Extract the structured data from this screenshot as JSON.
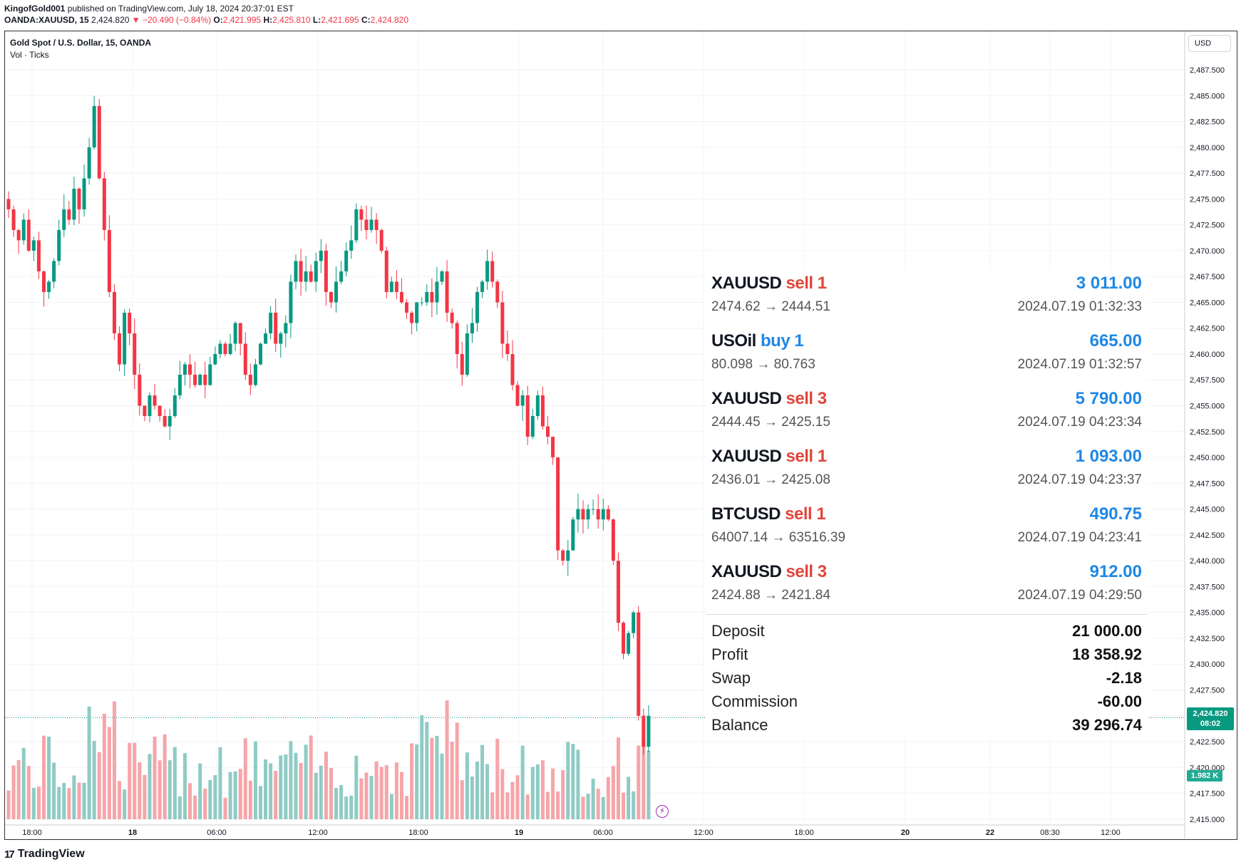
{
  "header": {
    "author": "KingofGold001",
    "published_text": "published on TradingView.com, July 18, 2024 20:37:01 EST",
    "symbol": "OANDA:XAUUSD, 15",
    "last": "2,424.820",
    "change": "−20.490 (−0.84%)",
    "o_label": "O:",
    "o_val": "2,421.995",
    "h_label": "H:",
    "h_val": "2,425.810",
    "l_label": "L:",
    "l_val": "2,421.695",
    "c_label": "C:",
    "c_val": "2,424.820"
  },
  "legend": {
    "title": "Gold Spot / U.S. Dollar, 15, OANDA",
    "volume": "Vol · Ticks"
  },
  "currency": "USD",
  "price_axis": [
    "2,487.500",
    "2,485.000",
    "2,482.500",
    "2,480.000",
    "2,477.500",
    "2,475.000",
    "2,472.500",
    "2,470.000",
    "2,467.500",
    "2,465.000",
    "2,462.500",
    "2,460.000",
    "2,457.500",
    "2,455.000",
    "2,452.500",
    "2,450.000",
    "2,447.500",
    "2,445.000",
    "2,442.500",
    "2,440.000",
    "2,437.500",
    "2,435.000",
    "2,432.500",
    "2,430.000",
    "2,427.500",
    "2,425.000",
    "2,422.500",
    "2,420.000",
    "2,417.500",
    "2,415.000"
  ],
  "time_axis": [
    "18:00",
    "18",
    "06:00",
    "12:00",
    "18:00",
    "19",
    "06:00",
    "12:00",
    "18:00",
    "20",
    "22",
    "08:30",
    "12:00"
  ],
  "price_tag": {
    "price": "2,424.820",
    "countdown": "08:02"
  },
  "volume_tag": "1.982 K",
  "trades": [
    {
      "symbol": "XAUUSD",
      "side": "sell 1",
      "type": "sell",
      "profit": "3 011.00",
      "prices": "2474.62 → 2444.51",
      "time": "2024.07.19 01:32:33"
    },
    {
      "symbol": "USOil",
      "side": "buy 1",
      "type": "buy",
      "profit": "665.00",
      "prices": "80.098 → 80.763",
      "time": "2024.07.19 01:32:57"
    },
    {
      "symbol": "XAUUSD",
      "side": "sell 3",
      "type": "sell",
      "profit": "5 790.00",
      "prices": "2444.45 → 2425.15",
      "time": "2024.07.19 04:23:34"
    },
    {
      "symbol": "XAUUSD",
      "side": "sell 1",
      "type": "sell",
      "profit": "1 093.00",
      "prices": "2436.01 → 2425.08",
      "time": "2024.07.19 04:23:37"
    },
    {
      "symbol": "BTCUSD",
      "side": "sell 1",
      "type": "sell",
      "profit": "490.75",
      "prices": "64007.14 → 63516.39",
      "time": "2024.07.19 04:23:41"
    },
    {
      "symbol": "XAUUSD",
      "side": "sell 3",
      "type": "sell",
      "profit": "912.00",
      "prices": "2424.88 → 2421.84",
      "time": "2024.07.19 04:29:50"
    }
  ],
  "summary": [
    {
      "label": "Deposit",
      "value": "21 000.00"
    },
    {
      "label": "Profit",
      "value": "18 358.92"
    },
    {
      "label": "Swap",
      "value": "-2.18"
    },
    {
      "label": "Commission",
      "value": "-60.00"
    },
    {
      "label": "Balance",
      "value": "39 296.74"
    }
  ],
  "footer": {
    "brand": "TradingView",
    "mark": "17"
  },
  "colors": {
    "up": "#089981",
    "down": "#f23645",
    "vol_up": "#8fcbc4",
    "vol_down": "#f6a5a9",
    "buy": "#1e88e5",
    "sell": "#e2463b"
  },
  "chart_data": {
    "type": "candlestick",
    "ylim": [
      2414,
      2490
    ],
    "closes": [
      2474,
      2472,
      2471,
      2473,
      2470,
      2471,
      2468,
      2466,
      2467,
      2469,
      2472,
      2474,
      2473,
      2476,
      2474,
      2477,
      2480,
      2484,
      2477,
      2472,
      2466,
      2462,
      2459,
      2464,
      2462,
      2458,
      2455,
      2454,
      2456,
      2455,
      2454,
      2453,
      2454,
      2456,
      2458,
      2459,
      2458,
      2457,
      2458,
      2457,
      2459,
      2460,
      2461,
      2460,
      2461,
      2463,
      2461,
      2458,
      2457,
      2459,
      2461,
      2462,
      2464,
      2461,
      2462,
      2463,
      2467,
      2469,
      2467,
      2468,
      2467,
      2469,
      2470,
      2466,
      2465,
      2467,
      2468,
      2470,
      2471,
      2474,
      2473,
      2472,
      2473,
      2472,
      2470,
      2466,
      2467,
      2466,
      2465,
      2464,
      2463,
      2465,
      2465,
      2466,
      2465,
      2467,
      2468,
      2464,
      2463,
      2460,
      2458,
      2462,
      2463,
      2466,
      2467,
      2469,
      2467,
      2465,
      2461,
      2460,
      2457,
      2455,
      2456,
      2452,
      2454,
      2456,
      2453,
      2452,
      2450,
      2441,
      2440,
      2441,
      2444,
      2445,
      2444,
      2445,
      2445,
      2444,
      2445,
      2444,
      2440,
      2434,
      2431,
      2433,
      2435,
      2425,
      2422,
      2425
    ]
  }
}
